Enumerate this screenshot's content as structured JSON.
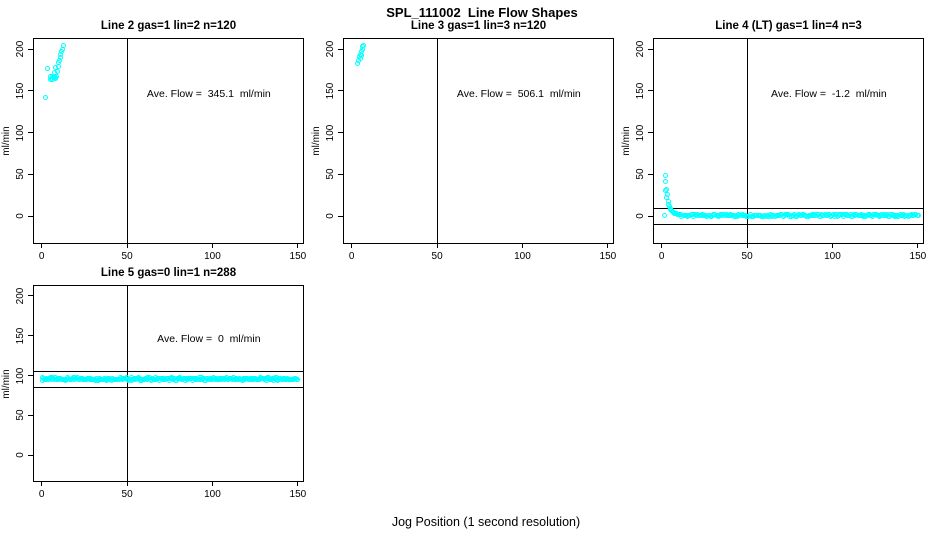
{
  "page": {
    "title": "SPL_111002  Line Flow Shapes",
    "xlabel": "Jog Position (1 second resolution)"
  },
  "colors": {
    "point": "#00FFFF",
    "axis": "#000000",
    "background": "#FFFFFF"
  },
  "chart_data": [
    {
      "type": "scatter",
      "title": "Line 2 gas=1 lin=2 n=120",
      "annotation": "Ave. Flow =  345.1  ml/min",
      "ylabel": "ml/min",
      "xlim": [
        -4.5,
        153
      ],
      "ylim": [
        -32,
        212
      ],
      "xticks": [
        0,
        50,
        100,
        150
      ],
      "yticks": [
        0,
        50,
        100,
        150,
        200
      ],
      "vline_x": 50,
      "hlines": [],
      "points": [
        [
          2.7,
          142
        ],
        [
          3.6,
          176
        ],
        [
          5.2,
          163
        ],
        [
          5.7,
          166
        ],
        [
          6.1,
          164
        ],
        [
          6.5,
          166
        ],
        [
          6.9,
          163
        ],
        [
          7.3,
          165
        ],
        [
          7.7,
          166
        ],
        [
          8.1,
          164
        ],
        [
          8.5,
          165
        ],
        [
          8.9,
          166
        ],
        [
          7.7,
          171
        ],
        [
          8.5,
          177
        ],
        [
          9.3,
          173
        ],
        [
          9.9,
          179
        ],
        [
          10.3,
          183
        ],
        [
          10.8,
          186
        ],
        [
          11.2,
          189
        ],
        [
          11.6,
          193
        ],
        [
          12.0,
          196
        ],
        [
          12.4,
          199
        ],
        [
          12.8,
          204
        ]
      ],
      "band": null
    },
    {
      "type": "scatter",
      "title": "Line 3 gas=1 lin=3 n=120",
      "annotation": "Ave. Flow =  506.1  ml/min",
      "ylabel": "ml/min",
      "xlim": [
        -4.5,
        153
      ],
      "ylim": [
        -32,
        212
      ],
      "xticks": [
        0,
        50,
        100,
        150
      ],
      "yticks": [
        0,
        50,
        100,
        150,
        200
      ],
      "vline_x": 50,
      "hlines": [],
      "points": [
        [
          3.8,
          182
        ],
        [
          4.3,
          186
        ],
        [
          4.9,
          190
        ],
        [
          5.4,
          188
        ],
        [
          5.5,
          193
        ],
        [
          6.0,
          196
        ],
        [
          6.2,
          192
        ],
        [
          6.4,
          199
        ],
        [
          6.9,
          202
        ],
        [
          7.4,
          204
        ]
      ],
      "band": null
    },
    {
      "type": "scatter",
      "title": "Line 4 (LT) gas=1 lin=4 n=3",
      "annotation": "Ave. Flow =  -1.2  ml/min",
      "ylabel": "ml/min",
      "xlim": [
        -4.5,
        153
      ],
      "ylim": [
        -32,
        212
      ],
      "xticks": [
        0,
        50,
        100,
        150
      ],
      "yticks": [
        0,
        50,
        100,
        150,
        200
      ],
      "vline_x": 50,
      "hlines": [
        9.5,
        -9.5
      ],
      "points": [
        [
          2.2,
          0
        ],
        [
          2.3,
          48
        ],
        [
          2.8,
          41
        ],
        [
          2.6,
          30
        ],
        [
          3.2,
          31
        ],
        [
          3.6,
          26
        ],
        [
          3.4,
          22
        ],
        [
          4.0,
          17
        ],
        [
          4.4,
          14
        ],
        [
          4.8,
          11
        ],
        [
          5.2,
          9
        ],
        [
          5.7,
          7.5
        ],
        [
          6.2,
          6
        ],
        [
          6.7,
          5
        ],
        [
          7.2,
          4
        ],
        [
          7.8,
          3.2
        ],
        [
          8.4,
          2.6
        ],
        [
          9.0,
          2.1
        ],
        [
          9.6,
          1.7
        ],
        [
          10.3,
          1.3
        ],
        [
          11.0,
          1.0
        ]
      ],
      "band": {
        "x1": 11.5,
        "x2": 150.5,
        "y": 0.4,
        "jitter": 1.2,
        "n": 210
      }
    },
    {
      "type": "scatter",
      "title": "Line 5 gas=0 lin=1 n=288",
      "annotation": "Ave. Flow =  0  ml/min",
      "ylabel": "ml/min",
      "xlim": [
        -4.5,
        153
      ],
      "ylim": [
        -32,
        212
      ],
      "xticks": [
        0,
        50,
        100,
        150
      ],
      "yticks": [
        0,
        50,
        100,
        150,
        200
      ],
      "vline_x": 50,
      "hlines": [
        105,
        85
      ],
      "points": [],
      "band": {
        "x1": 0.5,
        "x2": 150,
        "y": 95,
        "jitter": 1.5,
        "n": 288
      }
    }
  ]
}
